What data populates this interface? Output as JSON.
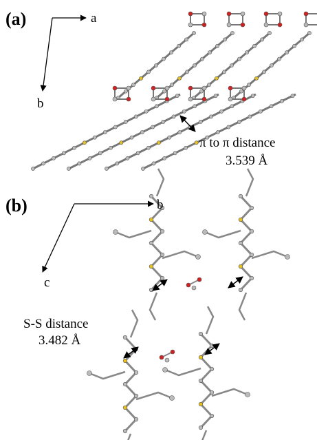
{
  "panel_a": {
    "label": "(a)",
    "axis_x": "a",
    "axis_y": "b",
    "annotation": "π to π distance",
    "distance": "3.539 Å"
  },
  "panel_b": {
    "label": "(b)",
    "axis_x": "b",
    "axis_y": "c",
    "annotation": "S-S distance",
    "distance": "3.482 Å"
  }
}
